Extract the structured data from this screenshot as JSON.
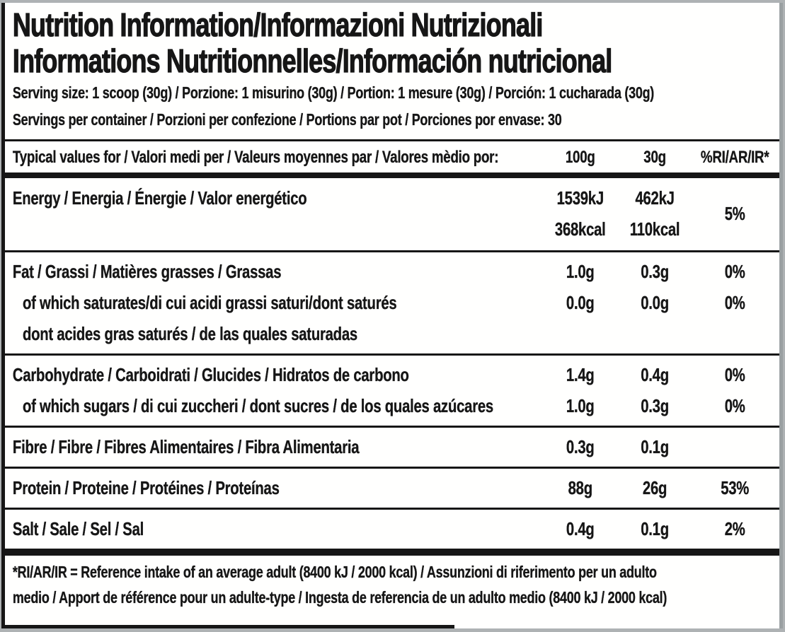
{
  "label": {
    "title_line1": "Nutrition Information/Informazioni Nutrizionali",
    "title_line2": "Informations Nutritionnelles/Información nutricional",
    "serving_size": "Serving size: 1 scoop (30g) / Porzione: 1 misurino (30g) / Portion: 1 mesure (30g) / Porción: 1 cucharada (30g)",
    "servings_per_container": "Servings per container / Porzioni per confezione / Portions par pot / Porciones por envase: 30",
    "columns": {
      "header_label": "Typical values for / Valori medi per / Valeurs moyennes par / Valores mèdio por:",
      "per_100g": "100g",
      "per_30g": "30g",
      "ri": "%RI/AR/IR*"
    },
    "energy": {
      "label": "Energy / Energia / Énergie / Valor energético",
      "kj_100": "1539kJ",
      "kcal_100": "368kcal",
      "kj_30": "462kJ",
      "kcal_30": "110kcal",
      "ri": "5%"
    },
    "sections": [
      {
        "rows": [
          {
            "label": "Fat / Grassi / Matières grasses / Grassas",
            "v100": "1.0g",
            "v30": "0.3g",
            "ri": "0%"
          },
          {
            "label": "of which saturates/di cui acidi grassi saturi/dont saturés",
            "v100": "0.0g",
            "v30": "0.0g",
            "ri": "0%"
          },
          {
            "label": "dont acides gras saturés / de las quales saturadas",
            "v100": "",
            "v30": "",
            "ri": ""
          }
        ]
      },
      {
        "rows": [
          {
            "label": "Carbohydrate / Carboidrati / Glucides / Hidratos de carbono",
            "v100": "1.4g",
            "v30": "0.4g",
            "ri": "0%"
          },
          {
            "label": "of which sugars / di cui zuccheri / dont sucres / de los quales azúcares",
            "v100": "1.0g",
            "v30": "0.3g",
            "ri": "0%"
          }
        ]
      },
      {
        "rows": [
          {
            "label": "Fibre / Fibre / Fibres Alimentaires / Fibra Alimentaria",
            "v100": "0.3g",
            "v30": "0.1g",
            "ri": ""
          }
        ]
      },
      {
        "rows": [
          {
            "label": "Protein / Proteine / Protéines / Proteínas",
            "v100": "88g",
            "v30": "26g",
            "ri": "53%"
          }
        ]
      },
      {
        "rows": [
          {
            "label": "Salt / Sale / Sel / Sal",
            "v100": "0.4g",
            "v30": "0.1g",
            "ri": "2%"
          }
        ]
      }
    ],
    "footnote_line1": "*RI/AR/IR = Reference intake of an average adult (8400 kJ / 2000 kcal)  / Assunzioni di riferimento per un adulto",
    "footnote_line2": "medio / Apport de référence pour un adulte-type / Ingesta de referencia de un adulto medio (8400 kJ / 2000 kcal)",
    "colors": {
      "ink": "#161616",
      "paper": "#fffffe",
      "surround": "#aeb2b4"
    }
  }
}
